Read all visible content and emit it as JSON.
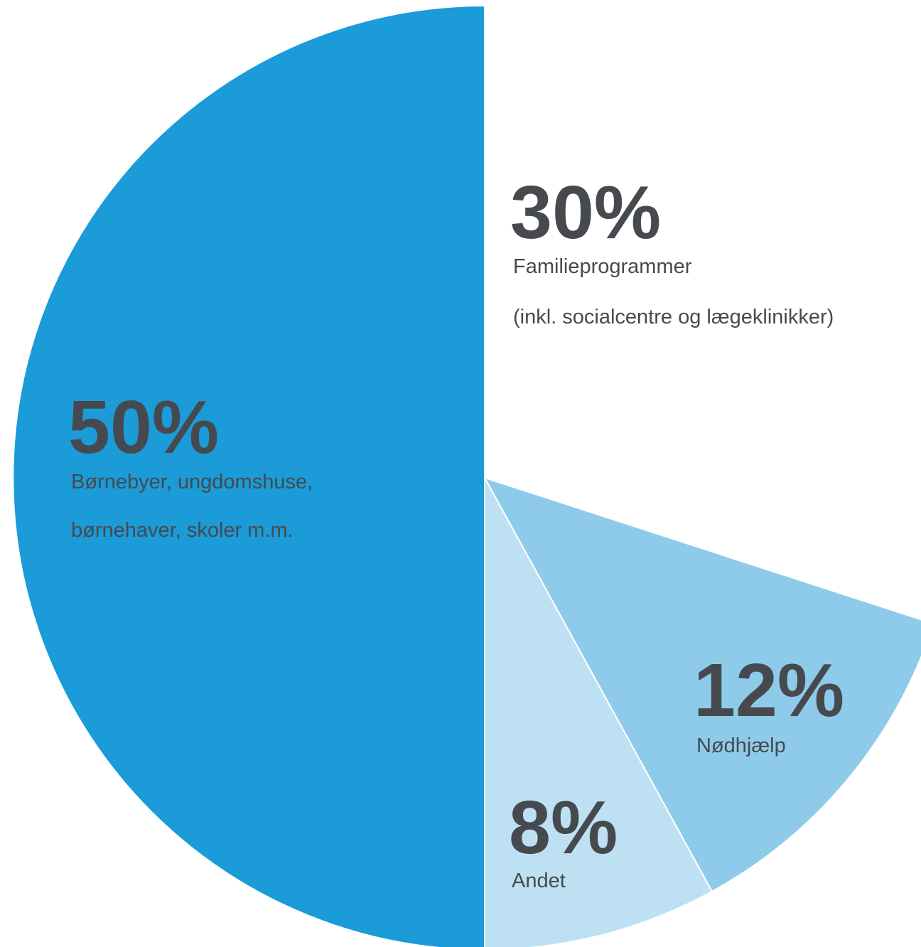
{
  "chart_data": {
    "type": "pie",
    "categories": [
      [
        "Familieprogrammer",
        "(inkl. socialcentre og lægeklinikker)"
      ],
      [
        "Nødhjælp"
      ],
      [
        "Andet"
      ],
      [
        "Børnebyer, ungdomshuse,",
        "børnehaver, skoler m.m."
      ]
    ],
    "values": [
      30,
      12,
      8,
      50
    ],
    "value_labels": [
      "30%",
      "12%",
      "8%",
      "50%"
    ],
    "colors": [
      "#ffffff",
      "#8ecbea",
      "#bde1f3",
      "#1b9bd7"
    ]
  }
}
